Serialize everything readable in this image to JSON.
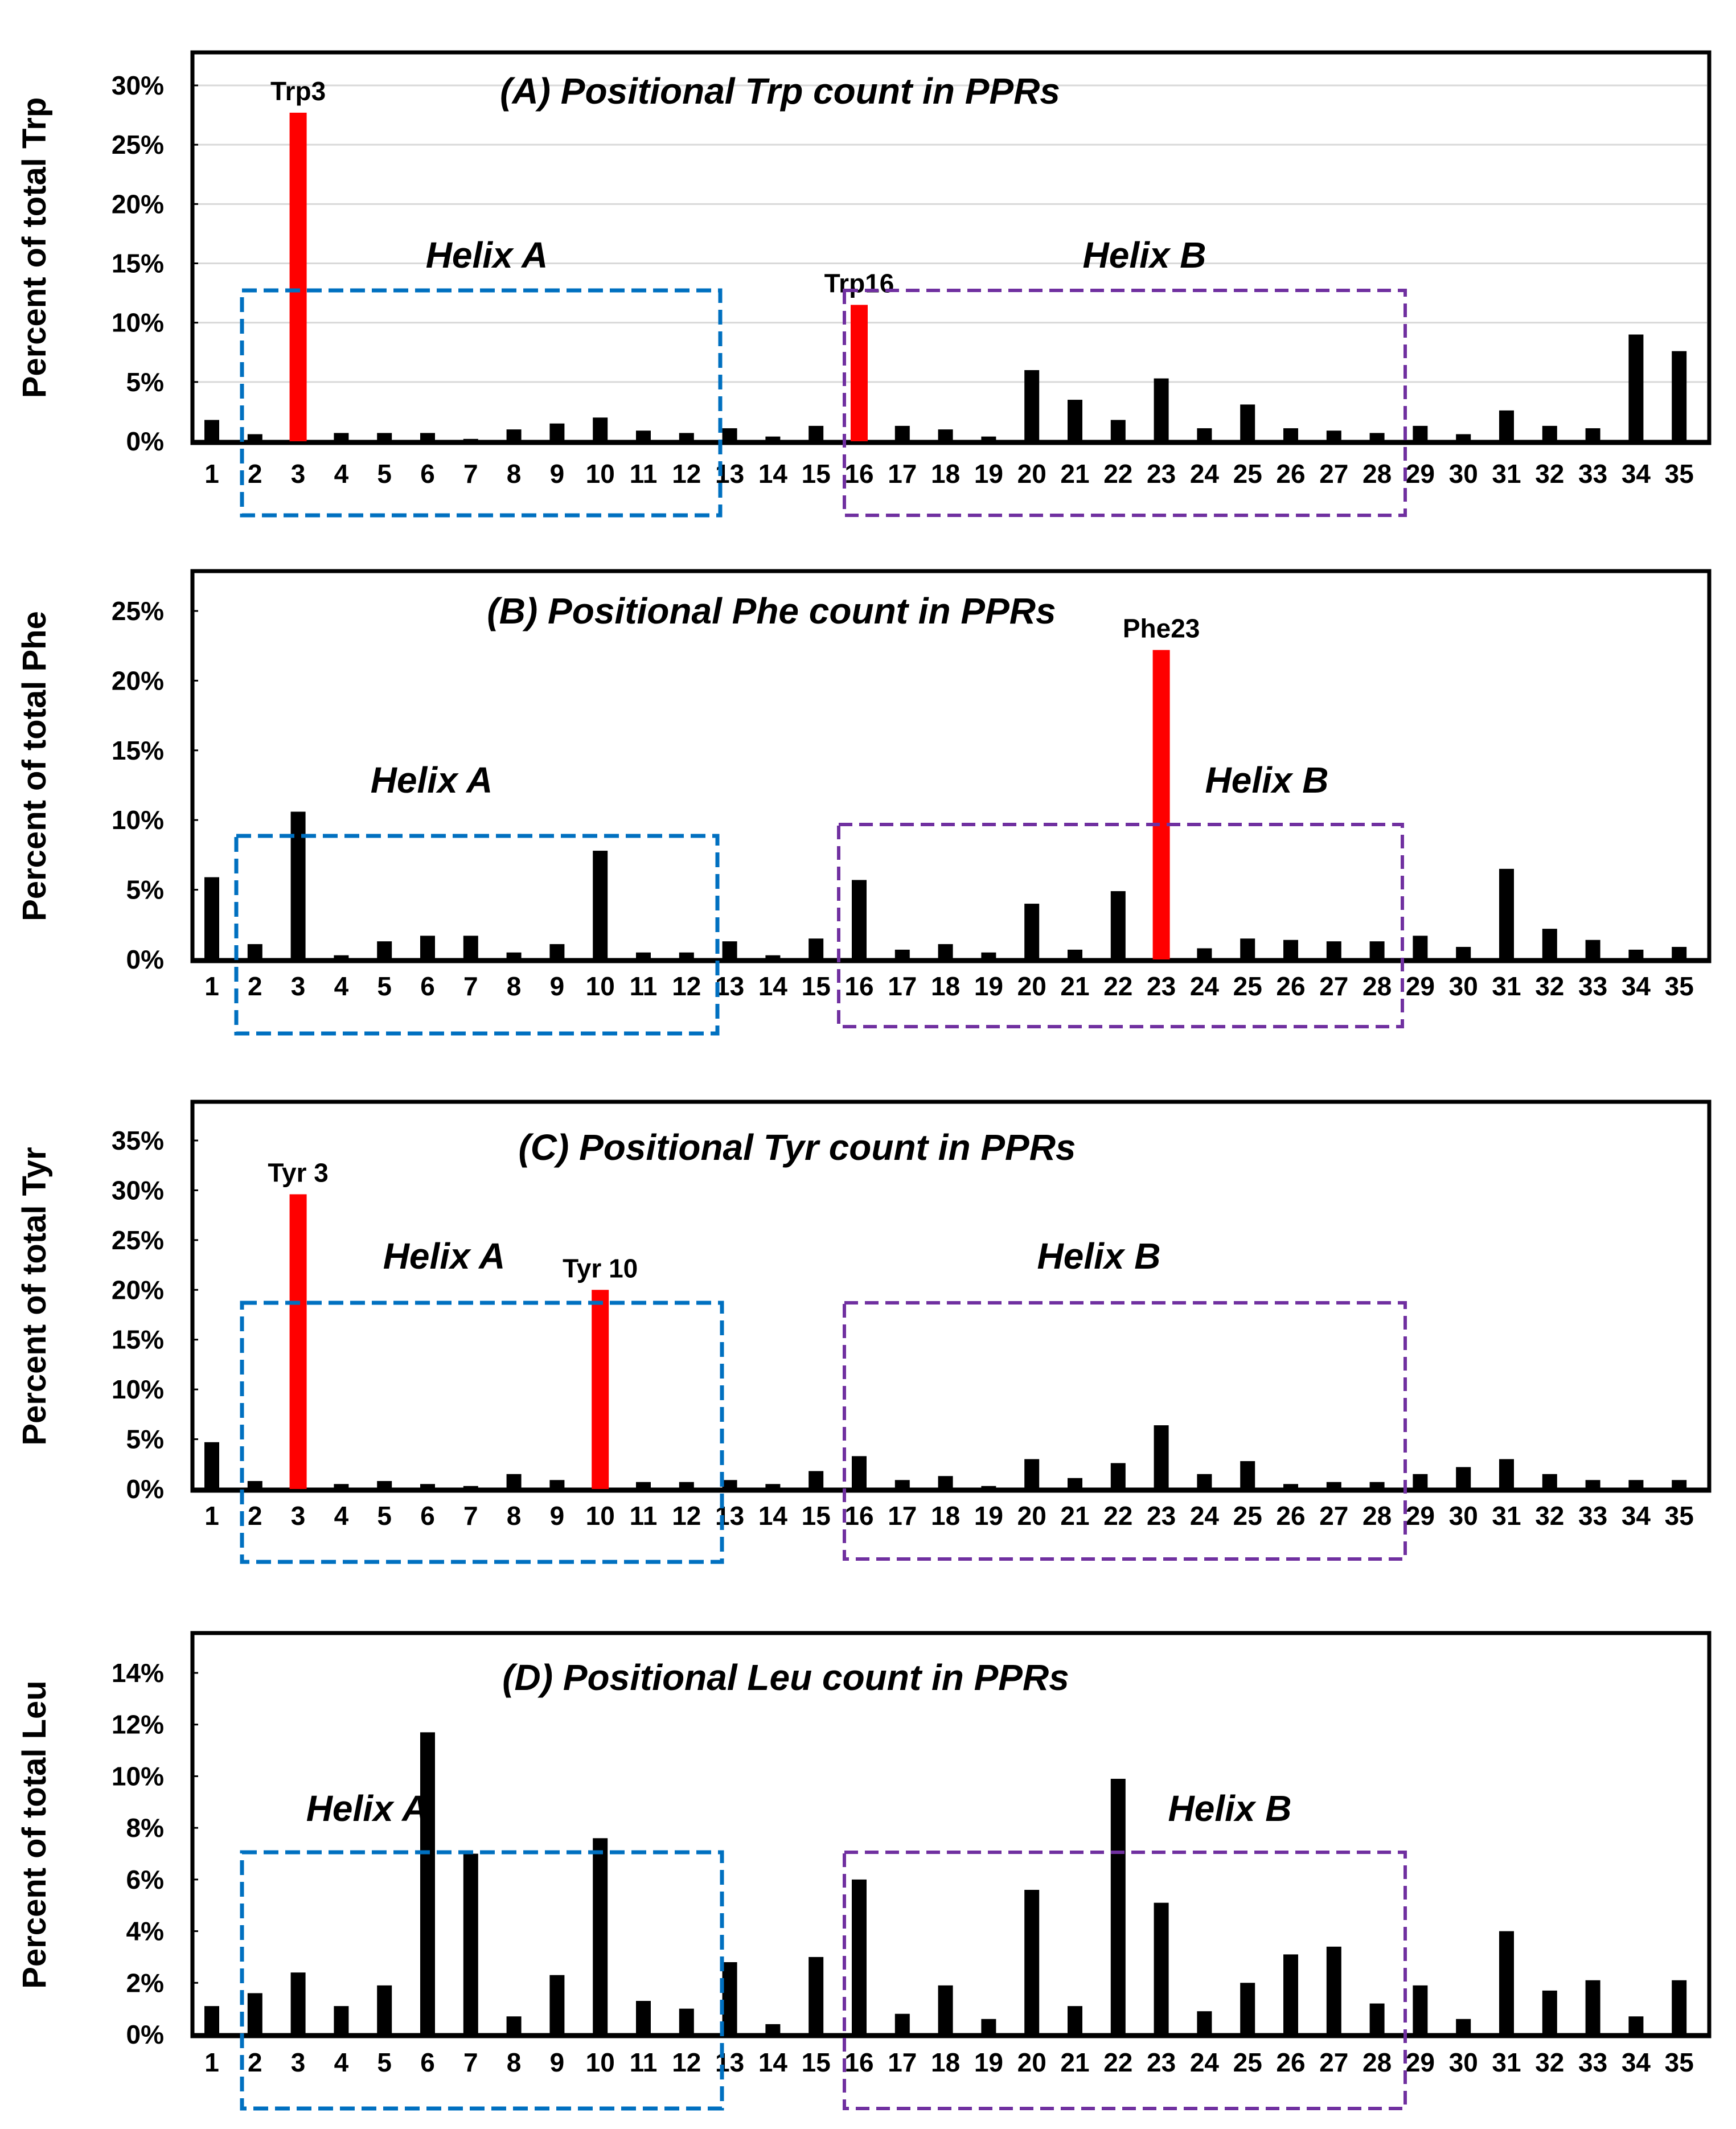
{
  "chart_data": [
    {
      "type": "bar",
      "title": "(A) Positional Trp count in PPRs",
      "ylabel": "Percent of total Trp",
      "ylim": [
        0,
        30
      ],
      "yticks": [
        0,
        5,
        10,
        15,
        20,
        25,
        30
      ],
      "ytick_labels": [
        "0%",
        "5%",
        "10%",
        "15%",
        "20%",
        "25%",
        "30%"
      ],
      "grid": true,
      "categories": [
        "1",
        "2",
        "3",
        "4",
        "5",
        "6",
        "7",
        "8",
        "9",
        "10",
        "11",
        "12",
        "13",
        "14",
        "15",
        "16",
        "17",
        "18",
        "19",
        "20",
        "21",
        "22",
        "23",
        "24",
        "25",
        "26",
        "27",
        "28",
        "29",
        "30",
        "31",
        "32",
        "33",
        "34",
        "35"
      ],
      "values": [
        1.8,
        0.6,
        27.7,
        0.7,
        0.7,
        0.7,
        0.2,
        1.0,
        1.5,
        2.0,
        0.9,
        0.7,
        1.1,
        0.4,
        1.3,
        11.5,
        1.3,
        1.0,
        0.4,
        6.0,
        3.5,
        1.8,
        5.3,
        1.1,
        3.1,
        1.1,
        0.9,
        0.7,
        1.3,
        0.6,
        2.6,
        1.3,
        1.1,
        9.0,
        7.6
      ],
      "colors": {
        "default": "#000000",
        "highlight": "#ff0000",
        "helix_a": "#0070c0",
        "helix_b": "#7030a0"
      },
      "highlighted": [
        {
          "category": "3",
          "label": "Trp3"
        },
        {
          "category": "16",
          "label": "Trp16"
        }
      ],
      "helix_a": {
        "label": "Helix A",
        "from": "2",
        "to": "12"
      },
      "helix_b": {
        "label": "Helix B",
        "from": "16",
        "to": "28"
      }
    },
    {
      "type": "bar",
      "title": "(B) Positional Phe count in PPRs",
      "ylabel": "Percent of total Phe",
      "ylim": [
        0,
        25
      ],
      "yticks": [
        0,
        5,
        10,
        15,
        20,
        25
      ],
      "ytick_labels": [
        "0%",
        "5%",
        "10%",
        "15%",
        "20%",
        "25%"
      ],
      "grid": false,
      "categories": [
        "1",
        "2",
        "3",
        "4",
        "5",
        "6",
        "7",
        "8",
        "9",
        "10",
        "11",
        "12",
        "13",
        "14",
        "15",
        "16",
        "17",
        "18",
        "19",
        "20",
        "21",
        "22",
        "23",
        "24",
        "25",
        "26",
        "27",
        "28",
        "29",
        "30",
        "31",
        "32",
        "33",
        "34",
        "35"
      ],
      "values": [
        5.9,
        1.1,
        10.6,
        0.3,
        1.3,
        1.7,
        1.7,
        0.5,
        1.1,
        7.8,
        0.5,
        0.5,
        1.3,
        0.3,
        1.5,
        5.7,
        0.7,
        1.1,
        0.5,
        4.0,
        0.7,
        4.9,
        22.2,
        0.8,
        1.5,
        1.4,
        1.3,
        1.3,
        1.7,
        0.9,
        6.5,
        2.2,
        1.4,
        0.7,
        0.9
      ],
      "colors": {
        "default": "#000000",
        "highlight": "#ff0000",
        "helix_a": "#0070c0",
        "helix_b": "#7030a0"
      },
      "highlighted": [
        {
          "category": "23",
          "label": "Phe23"
        }
      ],
      "helix_a": {
        "label": "Helix A",
        "from": "2",
        "to": "12"
      },
      "helix_b": {
        "label": "Helix B",
        "from": "16",
        "to": "28"
      }
    },
    {
      "type": "bar",
      "title": "(C) Positional Tyr count in PPRs",
      "ylabel": "Percent of total Tyr",
      "ylim": [
        0,
        35
      ],
      "yticks": [
        0,
        5,
        10,
        15,
        20,
        25,
        30,
        35
      ],
      "ytick_labels": [
        "0%",
        "5%",
        "10%",
        "15%",
        "20%",
        "25%",
        "30%",
        "35%"
      ],
      "grid": false,
      "categories": [
        "1",
        "2",
        "3",
        "4",
        "5",
        "6",
        "7",
        "8",
        "9",
        "10",
        "11",
        "12",
        "13",
        "14",
        "15",
        "16",
        "17",
        "18",
        "19",
        "20",
        "21",
        "22",
        "23",
        "24",
        "25",
        "26",
        "27",
        "28",
        "29",
        "30",
        "31",
        "32",
        "33",
        "34",
        "35"
      ],
      "values": [
        4.7,
        0.8,
        29.6,
        0.5,
        0.8,
        0.5,
        0.3,
        1.5,
        0.9,
        20.0,
        0.7,
        0.7,
        0.9,
        0.5,
        1.8,
        3.3,
        0.9,
        1.3,
        0.3,
        3.0,
        1.1,
        2.6,
        6.4,
        1.5,
        2.8,
        0.5,
        0.7,
        0.7,
        1.5,
        2.2,
        3.0,
        1.5,
        0.9,
        0.9,
        0.9
      ],
      "colors": {
        "default": "#000000",
        "highlight": "#ff0000",
        "helix_a": "#0070c0",
        "helix_b": "#7030a0"
      },
      "highlighted": [
        {
          "category": "3",
          "label": "Tyr 3"
        },
        {
          "category": "10",
          "label": "Tyr 10"
        }
      ],
      "helix_a": {
        "label": "Helix A",
        "from": "2",
        "to": "12"
      },
      "helix_b": {
        "label": "Helix B",
        "from": "16",
        "to": "28"
      }
    },
    {
      "type": "bar",
      "title": "(D) Positional Leu count in PPRs",
      "ylabel": "Percent of total Leu",
      "ylim": [
        0,
        14
      ],
      "yticks": [
        0,
        2,
        4,
        6,
        8,
        10,
        12,
        14
      ],
      "ytick_labels": [
        "0%",
        "2%",
        "4%",
        "6%",
        "8%",
        "10%",
        "12%",
        "14%"
      ],
      "grid": false,
      "categories": [
        "1",
        "2",
        "3",
        "4",
        "5",
        "6",
        "7",
        "8",
        "9",
        "10",
        "11",
        "12",
        "13",
        "14",
        "15",
        "16",
        "17",
        "18",
        "19",
        "20",
        "21",
        "22",
        "23",
        "24",
        "25",
        "26",
        "27",
        "28",
        "29",
        "30",
        "31",
        "32",
        "33",
        "34",
        "35"
      ],
      "values": [
        1.1,
        1.6,
        2.4,
        1.1,
        1.9,
        11.7,
        7.0,
        0.7,
        2.3,
        7.6,
        1.3,
        1.0,
        2.8,
        0.4,
        3.0,
        6.0,
        0.8,
        1.9,
        0.6,
        5.6,
        1.1,
        9.9,
        5.1,
        0.9,
        2.0,
        3.1,
        3.4,
        1.2,
        1.9,
        0.6,
        4.0,
        1.7,
        2.1,
        0.7,
        2.1
      ],
      "colors": {
        "default": "#000000",
        "highlight": "#ff0000",
        "helix_a": "#0070c0",
        "helix_b": "#7030a0"
      },
      "highlighted": [],
      "helix_a": {
        "label": "Helix A",
        "from": "2",
        "to": "12"
      },
      "helix_b": {
        "label": "Helix B",
        "from": "16",
        "to": "28"
      }
    }
  ]
}
